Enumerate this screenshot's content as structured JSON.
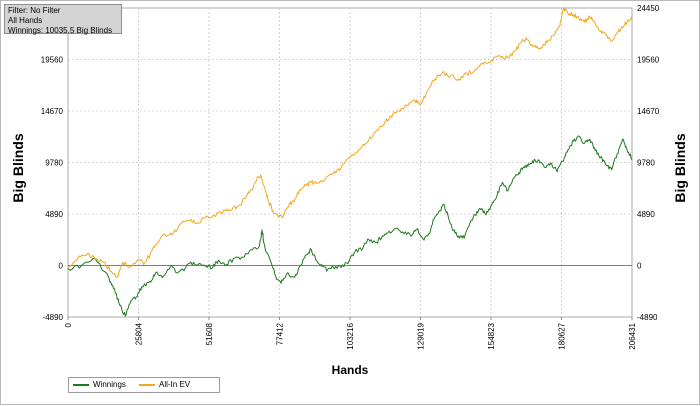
{
  "filter_panel": {
    "filter_line": "Filter: No Filter",
    "hands_line": "All Hands",
    "winnings_line": "Winnings: 10035.5 Big Blinds"
  },
  "chart_data": {
    "type": "line",
    "xlabel": "Hands",
    "ylabel_left": "Big Blinds",
    "ylabel_right": "Big Blinds",
    "x_ticks": [
      "0",
      "25804",
      "51608",
      "77412",
      "103216",
      "129019",
      "154823",
      "180627",
      "206431"
    ],
    "y_ticks": [
      "24450",
      "19560",
      "14670",
      "9780",
      "4890",
      "0",
      "-4890"
    ],
    "xlim": [
      0,
      206431
    ],
    "ylim": [
      -4890,
      24450
    ],
    "grid": true,
    "legend_position": "bottom-left",
    "series": [
      {
        "name": "Winnings",
        "color": "#1e7a1e",
        "points": [
          [
            0,
            -300
          ],
          [
            5000,
            0
          ],
          [
            10000,
            600
          ],
          [
            15000,
            -1200
          ],
          [
            17000,
            -2200
          ],
          [
            19000,
            -3800
          ],
          [
            21000,
            -4800
          ],
          [
            23000,
            -3400
          ],
          [
            25000,
            -3000
          ],
          [
            27000,
            -2000
          ],
          [
            30000,
            -1500
          ],
          [
            32000,
            -700
          ],
          [
            35000,
            -1000
          ],
          [
            38000,
            0
          ],
          [
            40000,
            -700
          ],
          [
            43000,
            -200
          ],
          [
            46000,
            300
          ],
          [
            49000,
            0
          ],
          [
            53000,
            -200
          ],
          [
            55000,
            500
          ],
          [
            58000,
            100
          ],
          [
            61000,
            700
          ],
          [
            64000,
            800
          ],
          [
            67000,
            1500
          ],
          [
            70000,
            1800
          ],
          [
            71000,
            3400
          ],
          [
            72000,
            1800
          ],
          [
            74000,
            500
          ],
          [
            76000,
            -1000
          ],
          [
            78000,
            -1700
          ],
          [
            80000,
            -800
          ],
          [
            83000,
            -1100
          ],
          [
            85000,
            0
          ],
          [
            87000,
            1000
          ],
          [
            89000,
            1500
          ],
          [
            91000,
            500
          ],
          [
            93000,
            -100
          ],
          [
            95000,
            -400
          ],
          [
            97000,
            -100
          ],
          [
            100000,
            -200
          ],
          [
            103000,
            500
          ],
          [
            105000,
            1300
          ],
          [
            108000,
            1700
          ],
          [
            110000,
            2500
          ],
          [
            113000,
            2200
          ],
          [
            115000,
            2800
          ],
          [
            117000,
            3100
          ],
          [
            120000,
            3500
          ],
          [
            123000,
            3000
          ],
          [
            126000,
            2900
          ],
          [
            128000,
            3500
          ],
          [
            130000,
            2500
          ],
          [
            132000,
            3000
          ],
          [
            134000,
            4400
          ],
          [
            136000,
            5200
          ],
          [
            137500,
            5800
          ],
          [
            139000,
            4800
          ],
          [
            141000,
            3300
          ],
          [
            143000,
            2800
          ],
          [
            145000,
            2600
          ],
          [
            147000,
            3900
          ],
          [
            149000,
            4800
          ],
          [
            151000,
            5300
          ],
          [
            153000,
            4800
          ],
          [
            155000,
            5700
          ],
          [
            157000,
            6600
          ],
          [
            159000,
            7900
          ],
          [
            161000,
            7100
          ],
          [
            163000,
            8300
          ],
          [
            165000,
            8800
          ],
          [
            167000,
            9300
          ],
          [
            169000,
            9600
          ],
          [
            171000,
            10000
          ],
          [
            173000,
            9800
          ],
          [
            175000,
            9300
          ],
          [
            177000,
            9700
          ],
          [
            179000,
            8900
          ],
          [
            181000,
            9900
          ],
          [
            183000,
            11000
          ],
          [
            185000,
            11800
          ],
          [
            187000,
            12300
          ],
          [
            189000,
            11600
          ],
          [
            191000,
            12000
          ],
          [
            193000,
            10900
          ],
          [
            195000,
            10300
          ],
          [
            197000,
            9500
          ],
          [
            199000,
            9100
          ],
          [
            201000,
            10600
          ],
          [
            203000,
            12000
          ],
          [
            204500,
            11100
          ],
          [
            206431,
            10035
          ]
        ]
      },
      {
        "name": "All-In EV",
        "color": "#f0a820",
        "points": [
          [
            0,
            -200
          ],
          [
            4000,
            900
          ],
          [
            7000,
            1100
          ],
          [
            10000,
            600
          ],
          [
            13000,
            300
          ],
          [
            16000,
            -600
          ],
          [
            18000,
            -1100
          ],
          [
            20000,
            300
          ],
          [
            23000,
            -100
          ],
          [
            26000,
            500
          ],
          [
            28000,
            200
          ],
          [
            30000,
            1000
          ],
          [
            32000,
            2000
          ],
          [
            35000,
            3000
          ],
          [
            38000,
            2900
          ],
          [
            41000,
            3900
          ],
          [
            44000,
            4300
          ],
          [
            47000,
            4000
          ],
          [
            50000,
            4500
          ],
          [
            53000,
            4700
          ],
          [
            56000,
            5000
          ],
          [
            59000,
            5300
          ],
          [
            62000,
            5600
          ],
          [
            65000,
            6400
          ],
          [
            67000,
            7200
          ],
          [
            69000,
            8100
          ],
          [
            70500,
            8600
          ],
          [
            72000,
            7400
          ],
          [
            73500,
            6000
          ],
          [
            75000,
            5200
          ],
          [
            77000,
            4600
          ],
          [
            79000,
            4800
          ],
          [
            81000,
            5800
          ],
          [
            83000,
            6300
          ],
          [
            85000,
            7100
          ],
          [
            87000,
            7600
          ],
          [
            89000,
            7900
          ],
          [
            91000,
            7800
          ],
          [
            94000,
            8100
          ],
          [
            97000,
            8700
          ],
          [
            100000,
            9300
          ],
          [
            103000,
            10200
          ],
          [
            106000,
            10800
          ],
          [
            109000,
            11600
          ],
          [
            112000,
            12500
          ],
          [
            115000,
            13200
          ],
          [
            118000,
            14200
          ],
          [
            121000,
            14700
          ],
          [
            124000,
            15200
          ],
          [
            127000,
            15700
          ],
          [
            129000,
            15300
          ],
          [
            131000,
            16300
          ],
          [
            133000,
            17200
          ],
          [
            135000,
            17900
          ],
          [
            137000,
            18300
          ],
          [
            140000,
            18000
          ],
          [
            143000,
            17700
          ],
          [
            146000,
            18200
          ],
          [
            149000,
            18600
          ],
          [
            152000,
            19100
          ],
          [
            155000,
            19500
          ],
          [
            158000,
            19900
          ],
          [
            161000,
            19700
          ],
          [
            164000,
            20500
          ],
          [
            166000,
            21200
          ],
          [
            168000,
            21500
          ],
          [
            170000,
            20800
          ],
          [
            172000,
            20600
          ],
          [
            174000,
            21000
          ],
          [
            176000,
            21400
          ],
          [
            178000,
            21900
          ],
          [
            180000,
            22700
          ],
          [
            181500,
            24400
          ],
          [
            183000,
            23900
          ],
          [
            185000,
            23800
          ],
          [
            187000,
            23500
          ],
          [
            189000,
            23100
          ],
          [
            191000,
            23600
          ],
          [
            193000,
            23000
          ],
          [
            195000,
            22300
          ],
          [
            197000,
            21900
          ],
          [
            199000,
            21300
          ],
          [
            201000,
            22100
          ],
          [
            203000,
            22600
          ],
          [
            205000,
            23300
          ],
          [
            206431,
            23500
          ]
        ]
      }
    ]
  }
}
